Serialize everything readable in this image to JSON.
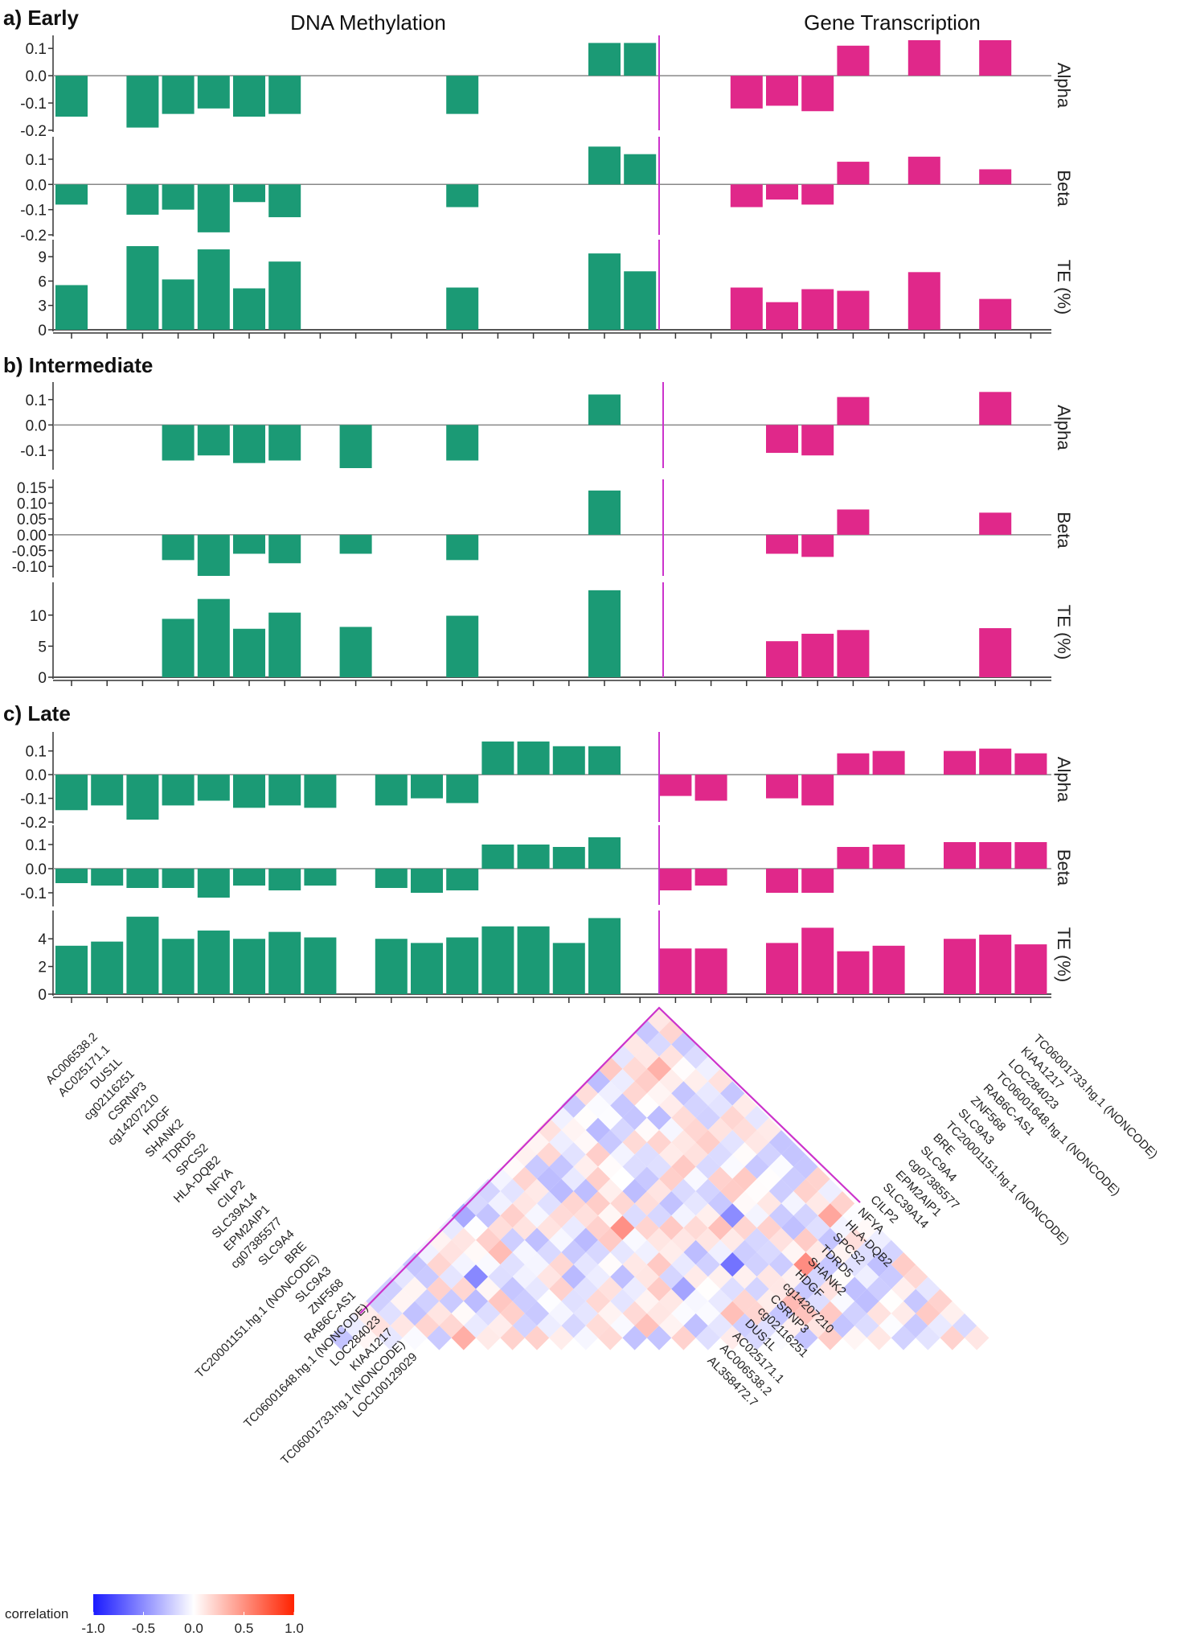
{
  "chart_data": {
    "type": "bar",
    "titles": {
      "left": "DNA Methylation",
      "right": "Gene Transcription"
    },
    "row_labels": [
      "Alpha",
      "Beta",
      "TE (%)"
    ],
    "colors": {
      "methylation": "#1b9a75",
      "transcription": "#e0288a",
      "divider": "#cc33cc",
      "baseline": "#888888"
    },
    "panels": [
      {
        "label": "a) Early",
        "x_slots": 28,
        "split": 17,
        "rows": [
          {
            "name": "Alpha",
            "ylim": [
              -0.2,
              0.13
            ],
            "ticks": [
              0.1,
              0.0,
              -0.1,
              -0.2
            ],
            "tick_labels": [
              "0.1",
              "0.0",
              "-0.1",
              "-0.2"
            ],
            "values": [
              -0.15,
              null,
              -0.19,
              -0.14,
              -0.12,
              -0.15,
              -0.14,
              null,
              null,
              null,
              null,
              -0.14,
              null,
              null,
              null,
              0.12,
              0.12,
              null,
              null,
              -0.12,
              -0.11,
              -0.13,
              0.11,
              null,
              0.13,
              null,
              0.13,
              null
            ]
          },
          {
            "name": "Beta",
            "ylim": [
              -0.2,
              0.17
            ],
            "ticks": [
              0.1,
              0.0,
              -0.1,
              -0.2
            ],
            "tick_labels": [
              "0.1",
              "0.0",
              "-0.1",
              "-0.2"
            ],
            "values": [
              -0.08,
              null,
              -0.12,
              -0.1,
              -0.19,
              -0.07,
              -0.13,
              null,
              null,
              null,
              null,
              -0.09,
              null,
              null,
              null,
              0.15,
              0.12,
              null,
              null,
              -0.09,
              -0.06,
              -0.08,
              0.09,
              null,
              0.11,
              null,
              0.06,
              null
            ]
          },
          {
            "name": "TE (%)",
            "ylim": [
              0,
              10.5
            ],
            "ticks": [
              9,
              6,
              3,
              0
            ],
            "tick_labels": [
              "9",
              "6",
              "3",
              "0"
            ],
            "values": [
              5.5,
              null,
              10.3,
              6.2,
              9.9,
              5.1,
              8.4,
              null,
              null,
              null,
              null,
              5.2,
              null,
              null,
              null,
              9.4,
              7.2,
              null,
              null,
              5.2,
              3.4,
              5.0,
              4.8,
              null,
              7.1,
              null,
              3.8,
              null
            ]
          }
        ]
      },
      {
        "label": "b) Intermediate",
        "x_slots": 28,
        "split": 17,
        "rows": [
          {
            "name": "Alpha",
            "ylim": [
              -0.17,
              0.15
            ],
            "ticks": [
              0.1,
              0.0,
              -0.1
            ],
            "tick_labels": [
              "0.1",
              "0.0",
              "-0.1"
            ],
            "values": [
              null,
              null,
              null,
              -0.14,
              -0.12,
              -0.15,
              -0.14,
              null,
              -0.17,
              null,
              null,
              -0.14,
              null,
              null,
              null,
              0.12,
              null,
              null,
              null,
              null,
              -0.11,
              -0.12,
              0.11,
              null,
              null,
              null,
              0.13,
              null
            ]
          },
          {
            "name": "Beta",
            "ylim": [
              -0.13,
              0.16
            ],
            "ticks": [
              0.15,
              0.1,
              0.05,
              0.0,
              -0.05,
              -0.1
            ],
            "tick_labels": [
              "0.15",
              "0.10",
              "0.05",
              "0.00",
              "-0.05",
              "-0.10"
            ],
            "values": [
              null,
              null,
              null,
              -0.08,
              -0.13,
              -0.06,
              -0.09,
              null,
              -0.06,
              null,
              null,
              -0.08,
              null,
              null,
              null,
              0.14,
              null,
              null,
              null,
              null,
              -0.06,
              -0.07,
              0.08,
              null,
              null,
              null,
              0.07,
              null
            ]
          },
          {
            "name": "TE (%)",
            "ylim": [
              0,
              14.5
            ],
            "ticks": [
              10,
              5,
              0
            ],
            "tick_labels": [
              "10",
              "5",
              "0"
            ],
            "values": [
              null,
              null,
              null,
              9.4,
              12.6,
              7.8,
              10.4,
              null,
              8.1,
              null,
              null,
              9.9,
              null,
              null,
              null,
              14.0,
              null,
              null,
              null,
              null,
              5.8,
              7.0,
              7.6,
              null,
              null,
              null,
              7.9,
              null
            ]
          }
        ]
      },
      {
        "label": "c) Late",
        "x_slots": 28,
        "split": 17,
        "rows": [
          {
            "name": "Alpha",
            "ylim": [
              -0.2,
              0.16
            ],
            "ticks": [
              0.1,
              0.0,
              -0.1,
              -0.2
            ],
            "tick_labels": [
              "0.1",
              "0.0",
              "-0.1",
              "-0.2"
            ],
            "values": [
              -0.15,
              -0.13,
              -0.19,
              -0.13,
              -0.11,
              -0.14,
              -0.13,
              -0.14,
              null,
              -0.13,
              -0.1,
              -0.12,
              0.14,
              0.14,
              0.12,
              0.12,
              null,
              -0.09,
              -0.11,
              null,
              -0.1,
              -0.13,
              0.09,
              0.1,
              null,
              0.1,
              0.11,
              0.09
            ]
          },
          {
            "name": "Beta",
            "ylim": [
              -0.15,
              0.16
            ],
            "ticks": [
              0.1,
              0.0,
              -0.1
            ],
            "tick_labels": [
              "0.1",
              "0.0",
              "-0.1"
            ],
            "values": [
              -0.06,
              -0.07,
              -0.08,
              -0.08,
              -0.12,
              -0.07,
              -0.09,
              -0.07,
              null,
              -0.08,
              -0.1,
              -0.09,
              0.1,
              0.1,
              0.09,
              0.13,
              null,
              -0.09,
              -0.07,
              null,
              -0.1,
              -0.1,
              0.09,
              0.1,
              null,
              0.11,
              0.11,
              0.11
            ]
          },
          {
            "name": "TE (%)",
            "ylim": [
              0,
              5.7
            ],
            "ticks": [
              4,
              2,
              0
            ],
            "tick_labels": [
              "4",
              "2",
              "0"
            ],
            "values": [
              3.5,
              3.8,
              5.6,
              4.0,
              4.6,
              4.0,
              4.5,
              4.1,
              null,
              4.0,
              3.7,
              4.1,
              4.9,
              4.9,
              3.7,
              5.5,
              null,
              3.3,
              3.3,
              null,
              3.7,
              4.8,
              3.1,
              3.5,
              null,
              4.0,
              4.3,
              3.6
            ]
          }
        ]
      }
    ],
    "heatmap": {
      "type": "heatmap",
      "legend_title": "correlation",
      "legend_ticks": [
        "-1.0",
        "-0.5",
        "0.0",
        "0.5",
        "1.0"
      ],
      "value_range": [
        -1.0,
        1.0
      ],
      "left_labels": [
        "AC006538.2",
        "AC025171.1",
        "DUS1L",
        "cg02116251",
        "CSRNP3",
        "cg14207210",
        "HDGF",
        "SHANK2",
        "TDRD5",
        "SPCS2",
        "HLA-DQB2",
        "NFYA",
        "CILP2",
        "SLC39A14",
        "EPM2AIP1",
        "cg07385577",
        "SLC9A4",
        "BRE",
        "TC20001151.hg.1 (NONCODE)",
        "SLC9A3",
        "ZNF568",
        "RAB6C-AS1",
        "TC06001648.hg.1 (NONCODE)",
        "LOC284023",
        "KIAA1217",
        "TC06001733.hg.1 (NONCODE)",
        "LOC100129029"
      ],
      "right_labels": [
        "TC06001733.hg.1 (NONCODE)",
        "KIAA1217",
        "LOC284023",
        "TC06001648.hg.1 (NONCODE)",
        "RAB6C-AS1",
        "ZNF568",
        "SLC9A3",
        "TC20001151.hg.1 (NONCODE)",
        "BRE",
        "SLC9A4",
        "cg07385577",
        "EPM2AIP1",
        "SLC39A14",
        "CILP2",
        "NFYA",
        "HLA-DQB2",
        "SPCS2",
        "TDRD5",
        "SHANK2",
        "HDGF",
        "cg14207210",
        "CSRNP3",
        "cg02116251",
        "DUS1L",
        "AC025171.1",
        "AC006538.2",
        "AL358472.7"
      ]
    }
  }
}
